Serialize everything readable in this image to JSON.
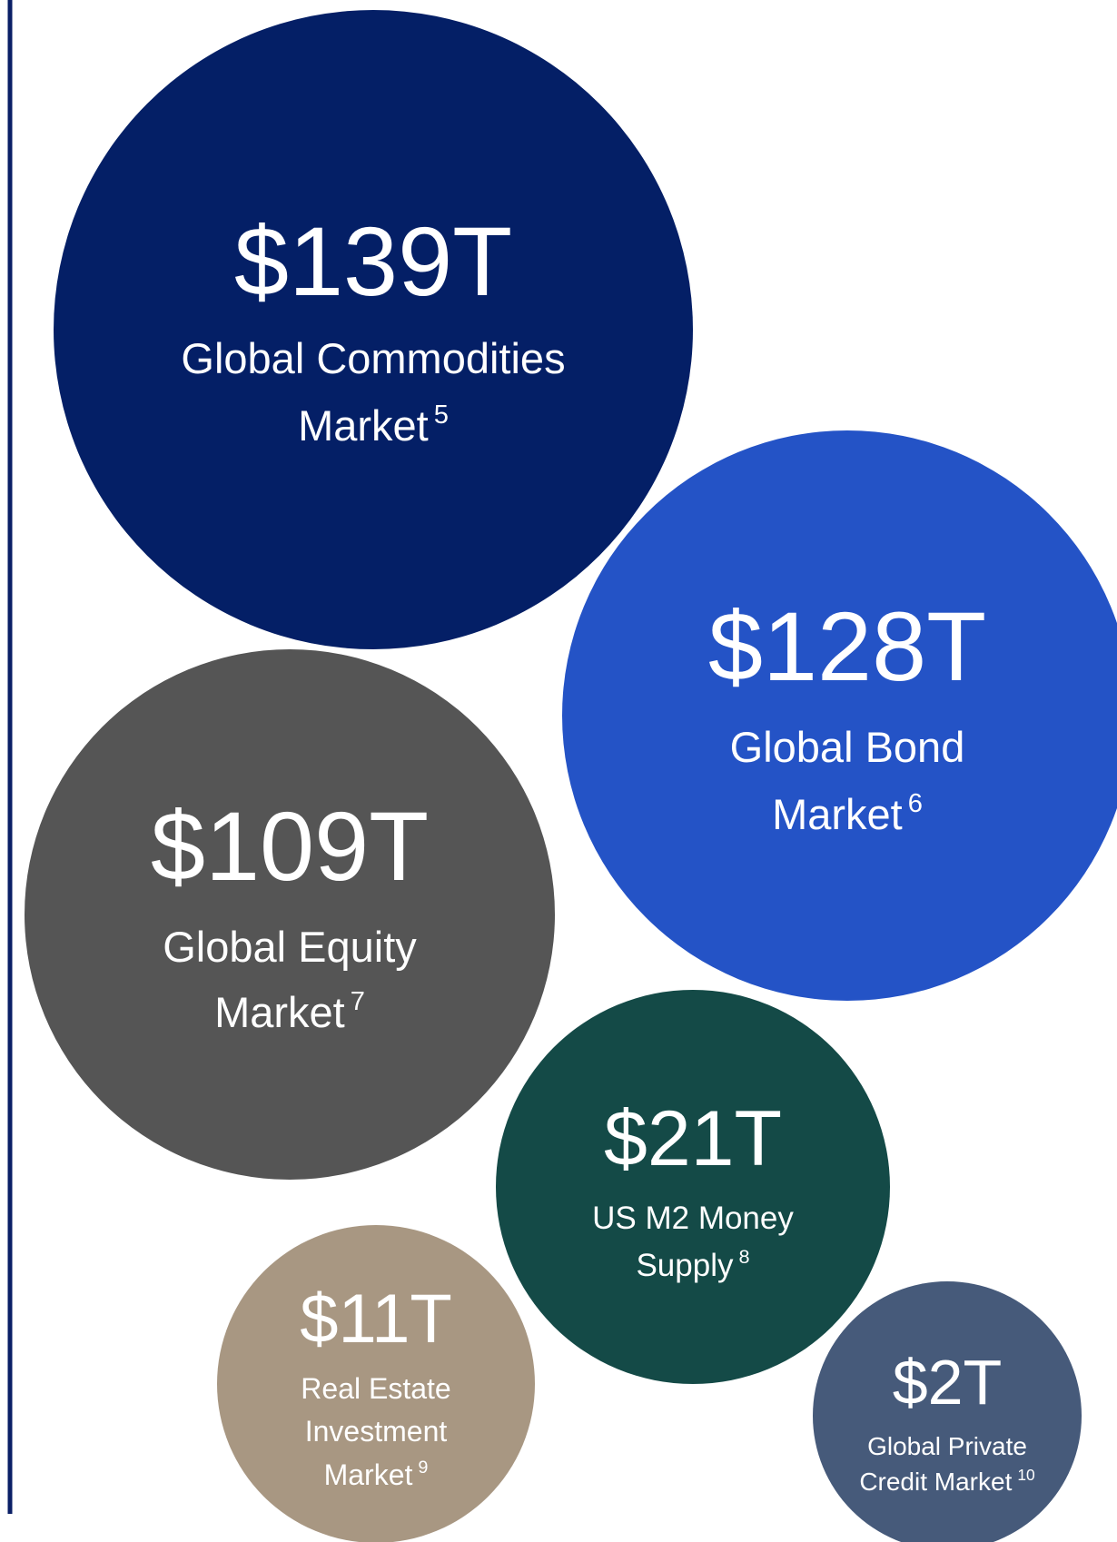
{
  "bubbles": [
    {
      "value": "$139T",
      "label": [
        "Global Commodities",
        "Market"
      ],
      "note": "5",
      "color": "#041f66"
    },
    {
      "value": "$128T",
      "label": [
        "Global Bond",
        "Market"
      ],
      "note": "6",
      "color": "#2453c6"
    },
    {
      "value": "$109T",
      "label": [
        "Global Equity",
        "Market"
      ],
      "note": "7",
      "color": "#555555"
    },
    {
      "value": "$21T",
      "label": [
        "US M2 Money",
        "Supply"
      ],
      "note": "8",
      "color": "#144a47"
    },
    {
      "value": "$11T",
      "label": [
        "Real Estate",
        "Investment",
        "Market"
      ],
      "note": "9",
      "color": "#a89782"
    },
    {
      "value": "$2T",
      "label": [
        "Global Private",
        "Credit Market"
      ],
      "note": "10",
      "color": "#465a7a"
    }
  ]
}
